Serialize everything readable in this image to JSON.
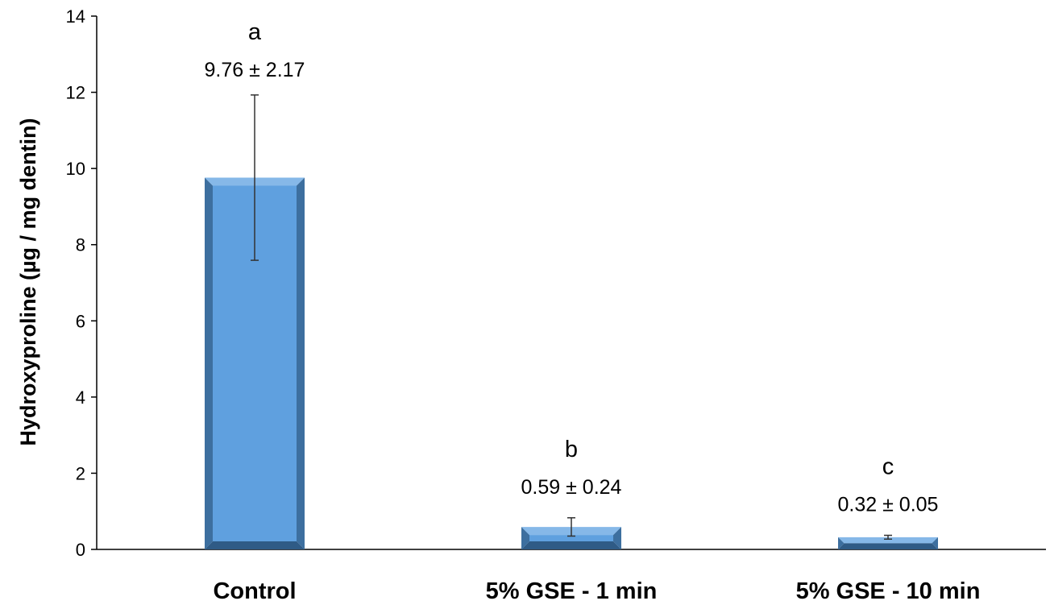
{
  "chart_data": {
    "type": "bar",
    "title": "",
    "xlabel": "",
    "ylabel": "Hydroxyproline (µg / mg dentin)",
    "ylim": [
      0,
      14
    ],
    "yticks": [
      0,
      2,
      4,
      6,
      8,
      10,
      12,
      14
    ],
    "grid": false,
    "legend": "none",
    "categories": [
      "Control",
      "5% GSE - 1 min",
      "5% GSE - 10 min"
    ],
    "values": [
      9.76,
      0.59,
      0.32
    ],
    "errors": [
      2.17,
      0.24,
      0.05
    ],
    "letters": [
      "a",
      "b",
      "c"
    ],
    "value_labels": [
      "9.76 ± 2.17",
      "0.59 ± 0.24",
      "0.32 ± 0.05"
    ],
    "colors": {
      "bar_front": "#5fa0df",
      "bar_side": "#3d6f9f",
      "bar_top": "#86b8e8",
      "bar_bottom": "#2f5b86",
      "axis": "#000000",
      "error_bar": "#333333"
    }
  }
}
